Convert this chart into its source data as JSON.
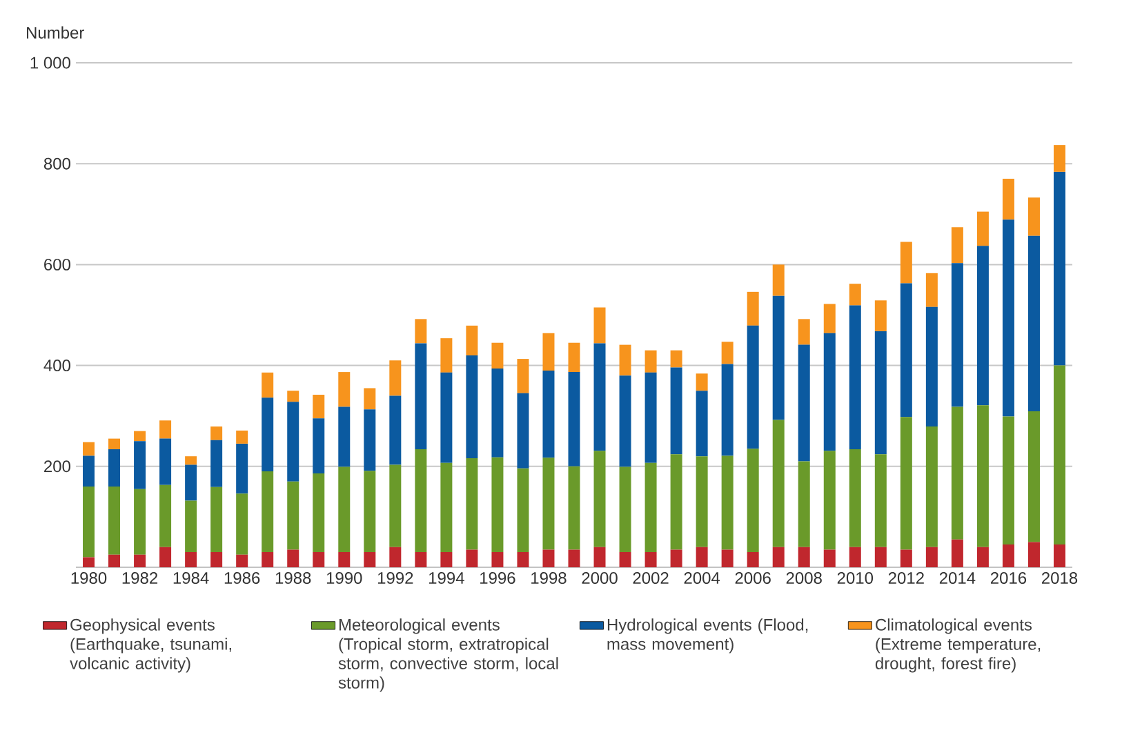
{
  "chart_data": {
    "type": "bar",
    "stacked": true,
    "ylabel": "Number",
    "categories": [
      "1980",
      null,
      "1982",
      null,
      "1984",
      null,
      "1986",
      null,
      "1988",
      null,
      "1990",
      null,
      "1992",
      null,
      "1994",
      null,
      "1996",
      null,
      "1998",
      null,
      "2000",
      null,
      "2002",
      null,
      "2004",
      null,
      "2006",
      null,
      "2008",
      null,
      "2010",
      null,
      "2012",
      null,
      "2014",
      null,
      "2016",
      null,
      "2018"
    ],
    "series": [
      {
        "name": "Geophysical events (Earthquake, tsunami, volcanic activity)",
        "color": "#c0272d",
        "values": [
          20,
          25,
          25,
          40,
          30,
          30,
          25,
          30,
          35,
          30,
          30,
          30,
          40,
          30,
          30,
          35,
          30,
          30,
          35,
          35,
          40,
          30,
          30,
          35,
          40,
          35,
          30,
          40,
          40,
          35,
          40,
          40,
          35,
          40,
          55,
          40,
          45,
          50,
          45
        ]
      },
      {
        "name": "Meteorological events (Tropical storm, extratropical storm, convective storm, local storm)",
        "color": "#6a9a2a",
        "values": [
          140,
          135,
          130,
          123,
          102,
          129,
          121,
          160,
          135,
          156,
          169,
          161,
          163,
          204,
          177,
          181,
          188,
          166,
          182,
          165,
          191,
          169,
          177,
          189,
          180,
          186,
          205,
          252,
          170,
          196,
          194,
          184,
          263,
          239,
          263,
          281,
          254,
          259,
          355
        ]
      },
      {
        "name": "Hydrological events (Flood, mass movement)",
        "color": "#0b5aa0",
        "values": [
          61,
          74,
          95,
          92,
          71,
          93,
          99,
          146,
          158,
          109,
          119,
          122,
          137,
          210,
          179,
          204,
          176,
          149,
          173,
          187,
          213,
          181,
          179,
          172,
          130,
          182,
          244,
          246,
          231,
          233,
          285,
          244,
          265,
          237,
          285,
          316,
          390,
          348,
          384
        ]
      },
      {
        "name": "Climatological events (Extreme temperature, drought, forest fire)",
        "color": "#f7941d",
        "values": [
          27,
          21,
          20,
          36,
          17,
          27,
          26,
          50,
          22,
          47,
          69,
          42,
          70,
          48,
          68,
          59,
          51,
          68,
          74,
          58,
          71,
          61,
          44,
          34,
          34,
          44,
          67,
          62,
          51,
          58,
          43,
          61,
          82,
          67,
          71,
          68,
          81,
          76,
          53
        ]
      }
    ],
    "ylim": [
      0,
      1000
    ],
    "yticks": [
      {
        "value": 200,
        "label": "200"
      },
      {
        "value": 400,
        "label": "400"
      },
      {
        "value": 600,
        "label": "600"
      },
      {
        "value": 800,
        "label": "800"
      },
      {
        "value": 1000,
        "label": "1 000"
      }
    ],
    "grid": "y",
    "legend": "bottom"
  }
}
